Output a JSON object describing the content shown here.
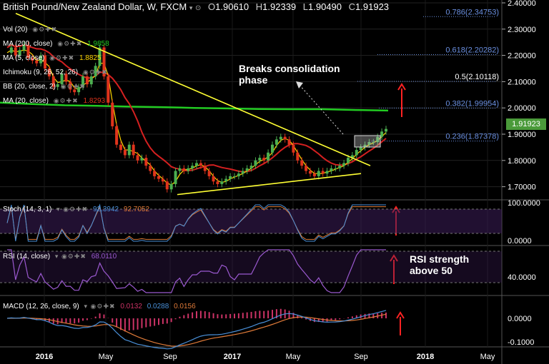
{
  "header": {
    "symbol": "British Pound/New Zealand Dollar, W, FXCM",
    "open_label": "O",
    "open": "1.90610",
    "high_label": "H",
    "high": "1.92339",
    "low_label": "L",
    "low": "1.90490",
    "close_label": "C",
    "close": "1.91923"
  },
  "indicators_main": [
    {
      "label": "Vol (20)",
      "value": ""
    },
    {
      "label": "MA (200, close)",
      "value": "1.9858"
    },
    {
      "label": "MA (5, close)",
      "value": "1.8825"
    },
    {
      "label": "Ichimoku (9, 26, 52, 26)",
      "value": ""
    },
    {
      "label": "BB (20, close, 2)",
      "value": ""
    },
    {
      "label": "MA (20, close)",
      "value": "1.8293"
    }
  ],
  "indicators_sub": {
    "stoch": {
      "label": "Stoch (14, 3, 1)",
      "k": "92.3942",
      "d": "92.7052"
    },
    "rsi": {
      "label": "RSI (14, close)",
      "value": "68.0110"
    },
    "macd": {
      "label": "MACD (12, 26, close, 9)",
      "v1": "0.0132",
      "v2": "0.0288",
      "v3": "0.0156"
    }
  },
  "current_price": "1.91923",
  "annotations": {
    "breaks": [
      "Breaks consolidation",
      "phase"
    ],
    "rsi": [
      "RSI strength",
      "above 50"
    ]
  },
  "colors": {
    "bull": "#4caf50",
    "bear": "#e0341c",
    "ma200": "#22cc22",
    "ma20": "#d42020",
    "ma5": "#ffd700",
    "trend": "#ffff33",
    "stoch_k": "#4a90d9",
    "stoch_d": "#e07b39",
    "rsi": "#9b59d0",
    "macd": "#4a90d9",
    "signal": "#e07b39",
    "hist": "#cc3366",
    "annot_arrow": "#ff2222",
    "fib": "#6a8fe0"
  },
  "chart_data": {
    "type": "candlestick",
    "title": "British Pound/New Zealand Dollar, W, FXCM",
    "price_axis": {
      "ticks": [
        "2.40000",
        "2.30000",
        "2.20000",
        "2.10000",
        "2.00000",
        "1.90000",
        "1.80000",
        "1.70000"
      ],
      "ylim": [
        1.65,
        2.4
      ]
    },
    "time_axis": {
      "ticks": [
        "2016",
        "May",
        "Sep",
        "2017",
        "May",
        "Sep",
        "2018",
        "May"
      ]
    },
    "fib_levels": [
      {
        "label": "0.786(2.34753)",
        "value": 2.34753
      },
      {
        "label": "0.618(2.20282)",
        "value": 2.20282
      },
      {
        "label": "0.5(2.10118)",
        "value": 2.10118
      },
      {
        "label": "0.382(1.99954)",
        "value": 1.99954
      },
      {
        "label": "0.236(1.87378)",
        "value": 1.87378
      }
    ],
    "close_series": [
      2.21,
      2.23,
      2.2,
      2.22,
      2.24,
      2.19,
      2.18,
      2.17,
      2.2,
      2.15,
      2.12,
      2.08,
      2.09,
      2.13,
      2.1,
      2.07,
      2.06,
      2.08,
      2.12,
      2.09,
      2.12,
      2.16,
      2.23,
      2.12,
      2.02,
      1.93,
      1.86,
      1.84,
      1.82,
      1.86,
      1.82,
      1.8,
      1.81,
      1.78,
      1.76,
      1.74,
      1.73,
      1.72,
      1.69,
      1.71,
      1.76,
      1.77,
      1.76,
      1.77,
      1.78,
      1.79,
      1.78,
      1.76,
      1.74,
      1.72,
      1.71,
      1.72,
      1.73,
      1.74,
      1.74,
      1.75,
      1.76,
      1.77,
      1.78,
      1.8,
      1.81,
      1.8,
      1.83,
      1.86,
      1.88,
      1.89,
      1.88,
      1.86,
      1.83,
      1.8,
      1.78,
      1.76,
      1.75,
      1.74,
      1.76,
      1.75,
      1.76,
      1.77,
      1.77,
      1.78,
      1.79,
      1.81,
      1.82,
      1.84,
      1.85,
      1.86,
      1.87,
      1.87,
      1.89,
      1.91,
      1.92
    ],
    "ma200": {
      "name": "MA (200, close)",
      "values": [
        2.02,
        2.015,
        2.01,
        2.008,
        2.005,
        2.003,
        2.0,
        1.998,
        1.996,
        1.995,
        1.995,
        1.992,
        1.99
      ]
    },
    "stoch": {
      "ticks": [
        "100.0000",
        "0.0000"
      ],
      "k_last": 92.3942,
      "d_last": 92.7052
    },
    "rsi": {
      "ticks": [
        "40.0000"
      ],
      "last": 68.011
    },
    "macd": {
      "ticks": [
        "0.0000",
        "-0.1000"
      ],
      "macd": 0.0132,
      "signal": 0.0288,
      "hist": 0.0156
    }
  }
}
